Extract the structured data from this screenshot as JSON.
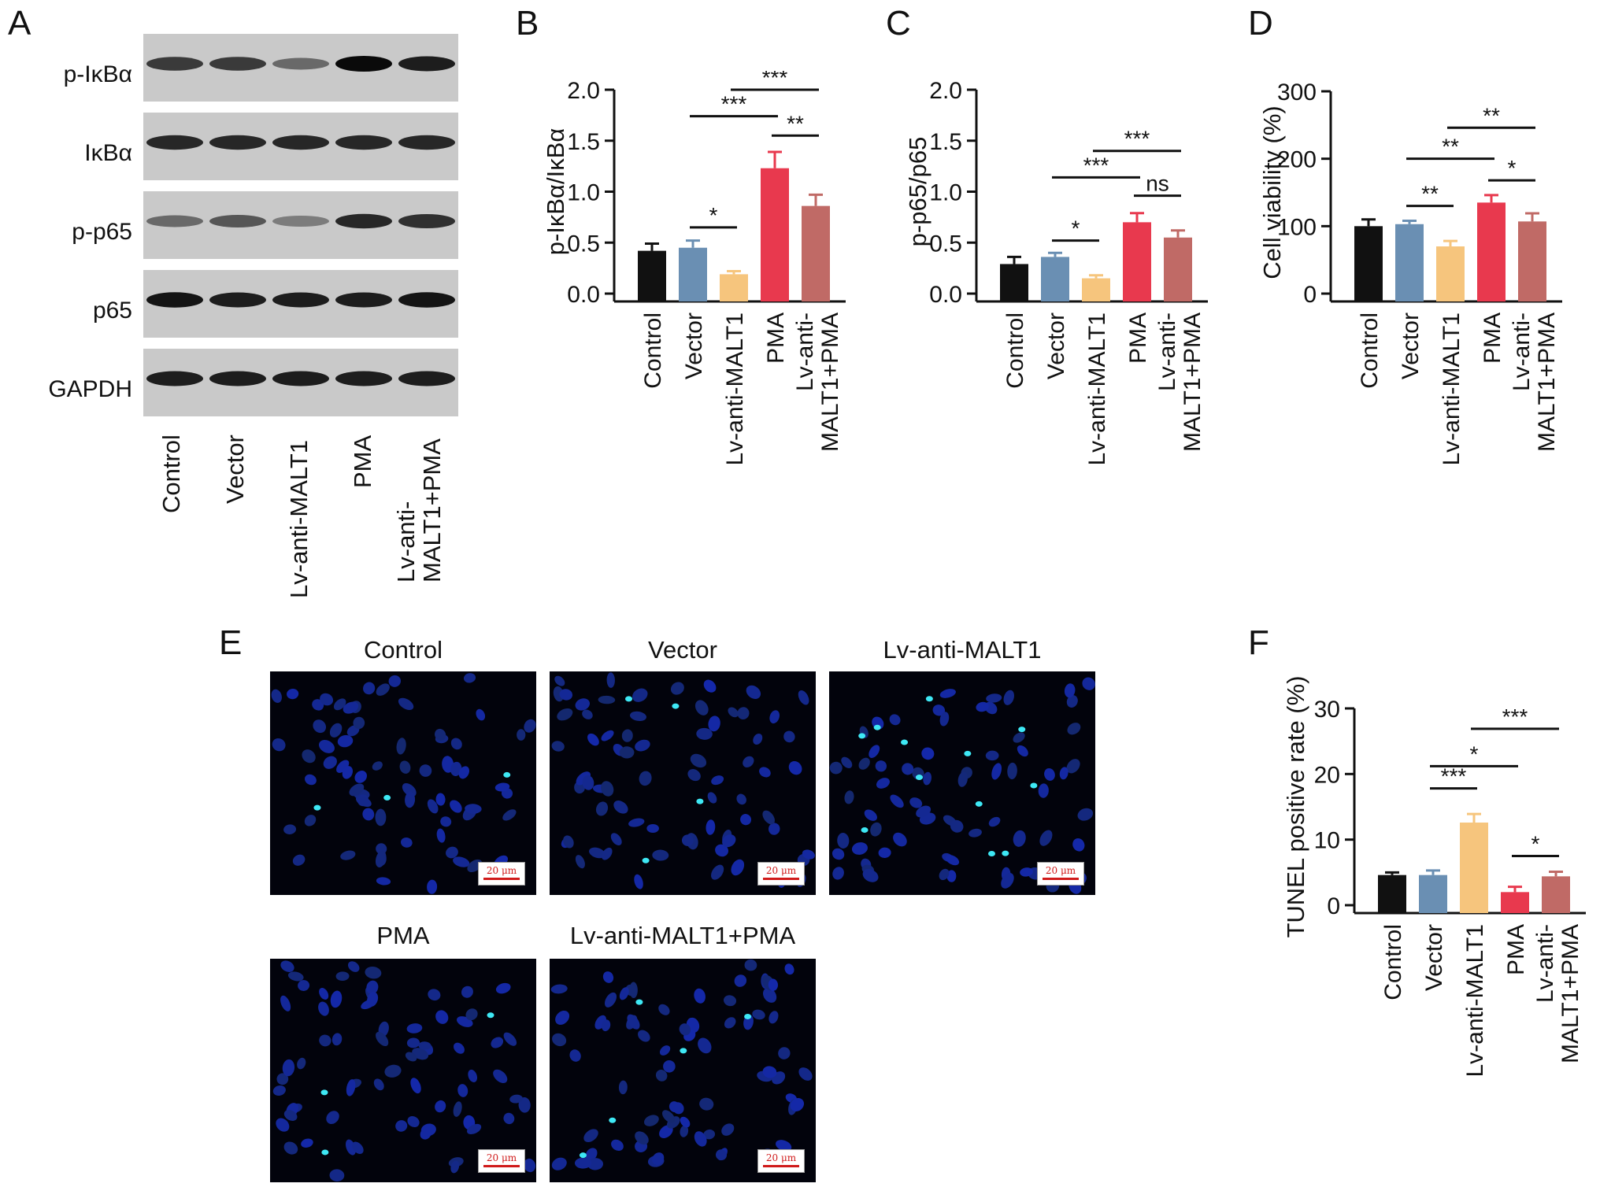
{
  "panel_letters": {
    "a": "A",
    "b": "B",
    "c": "C",
    "d": "D",
    "e": "E",
    "f": "F"
  },
  "groups": [
    "Control",
    "Vector",
    "Lv-anti-MALT1",
    "PMA",
    "Lv-anti-\nMALT1+PMA"
  ],
  "colors": {
    "Control": "#111111",
    "Vector": "#6a8fb3",
    "Lv-anti-MALT1": "#f6c57d",
    "PMA": "#e8394e",
    "Lv-anti-MALT1+PMA": "#c06a66"
  },
  "blot": {
    "labels": [
      "p-IκBα",
      "IκBα",
      "p-p65",
      "p65",
      "GAPDH"
    ],
    "intensity": [
      [
        0.75,
        0.75,
        0.5,
        1.0,
        0.9
      ],
      [
        0.85,
        0.85,
        0.85,
        0.85,
        0.85
      ],
      [
        0.5,
        0.6,
        0.4,
        0.85,
        0.8
      ],
      [
        0.95,
        0.9,
        0.9,
        0.9,
        0.95
      ],
      [
        0.9,
        0.9,
        0.9,
        0.9,
        0.9
      ]
    ]
  },
  "chart_data": [
    {
      "panel": "B",
      "type": "bar",
      "ylabel": "p-IκBα/IκBα",
      "ylim": [
        0,
        2.0
      ],
      "yticks": [
        "0.0",
        "0.5",
        "1.0",
        "1.5",
        "2.0"
      ],
      "ytick_values": [
        0,
        0.5,
        1.0,
        1.5,
        2.0
      ],
      "categories": [
        "Control",
        "Vector",
        "Lv-anti-MALT1",
        "PMA",
        "Lv-anti-\nMALT1+PMA"
      ],
      "values": [
        0.42,
        0.45,
        0.19,
        1.23,
        0.86
      ],
      "errors": [
        0.07,
        0.07,
        0.03,
        0.16,
        0.11
      ],
      "significance": [
        {
          "from": 1,
          "to": 2,
          "label": "*",
          "y": 0.65
        },
        {
          "from": 1,
          "to": 3,
          "label": "***",
          "y": 1.74
        },
        {
          "from": 2,
          "to": 4,
          "label": "***",
          "y": 2.0
        },
        {
          "from": 3,
          "to": 4,
          "label": "**",
          "y": 1.55
        }
      ]
    },
    {
      "panel": "C",
      "type": "bar",
      "ylabel": "p-p65/p65",
      "ylim": [
        0,
        2.0
      ],
      "yticks": [
        "0.0",
        "0.5",
        "1.0",
        "1.5",
        "2.0"
      ],
      "ytick_values": [
        0,
        0.5,
        1.0,
        1.5,
        2.0
      ],
      "categories": [
        "Control",
        "Vector",
        "Lv-anti-MALT1",
        "PMA",
        "Lv-anti-\nMALT1+PMA"
      ],
      "values": [
        0.29,
        0.36,
        0.15,
        0.7,
        0.55
      ],
      "errors": [
        0.07,
        0.04,
        0.03,
        0.09,
        0.07
      ],
      "significance": [
        {
          "from": 1,
          "to": 2,
          "label": "*",
          "y": 0.52
        },
        {
          "from": 1,
          "to": 3,
          "label": "***",
          "y": 1.14
        },
        {
          "from": 2,
          "to": 4,
          "label": "***",
          "y": 1.4
        },
        {
          "from": 3,
          "to": 4,
          "label": "ns",
          "y": 0.96
        }
      ]
    },
    {
      "panel": "D",
      "type": "bar",
      "ylabel": "Cell viability (%)",
      "ylim": [
        0,
        300
      ],
      "yticks": [
        "0",
        "100",
        "200",
        "300"
      ],
      "ytick_values": [
        0,
        100,
        200,
        300
      ],
      "categories": [
        "Control",
        "Vector",
        "Lv-anti-MALT1",
        "PMA",
        "Lv-anti-\nMALT1+PMA"
      ],
      "values": [
        100,
        103,
        70,
        135,
        107
      ],
      "errors": [
        10,
        5,
        8,
        11,
        12
      ],
      "significance": [
        {
          "from": 1,
          "to": 2,
          "label": "**",
          "y": 130
        },
        {
          "from": 1,
          "to": 3,
          "label": "**",
          "y": 200
        },
        {
          "from": 2,
          "to": 4,
          "label": "**",
          "y": 246
        },
        {
          "from": 3,
          "to": 4,
          "label": "*",
          "y": 168
        }
      ]
    },
    {
      "panel": "F",
      "type": "bar",
      "ylabel": "TUNEL positive rate (%)",
      "ylim": [
        0,
        30
      ],
      "yticks": [
        "0",
        "10",
        "20",
        "30"
      ],
      "ytick_values": [
        0,
        10,
        20,
        30
      ],
      "categories": [
        "Control",
        "Vector",
        "Lv-anti-MALT1",
        "PMA",
        "Lv-anti-\nMALT1+PMA"
      ],
      "values": [
        4.6,
        4.6,
        12.6,
        2.0,
        4.4
      ],
      "errors": [
        0.4,
        0.7,
        1.3,
        0.8,
        0.7
      ],
      "significance": [
        {
          "from": 1,
          "to": 2,
          "label": "***",
          "y": 17.8
        },
        {
          "from": 1,
          "to": 3,
          "label": "*",
          "y": 21.2
        },
        {
          "from": 2,
          "to": 4,
          "label": "***",
          "y": 26.9
        },
        {
          "from": 3,
          "to": 4,
          "label": "*",
          "y": 7.5
        }
      ]
    }
  ],
  "images": {
    "titles": [
      "Control",
      "Vector",
      "Lv-anti-MALT1",
      "PMA",
      "Lv-anti-MALT1+PMA"
    ],
    "scale_bar": "20 μm",
    "bright_cells": [
      3,
      4,
      12,
      3,
      5
    ]
  }
}
